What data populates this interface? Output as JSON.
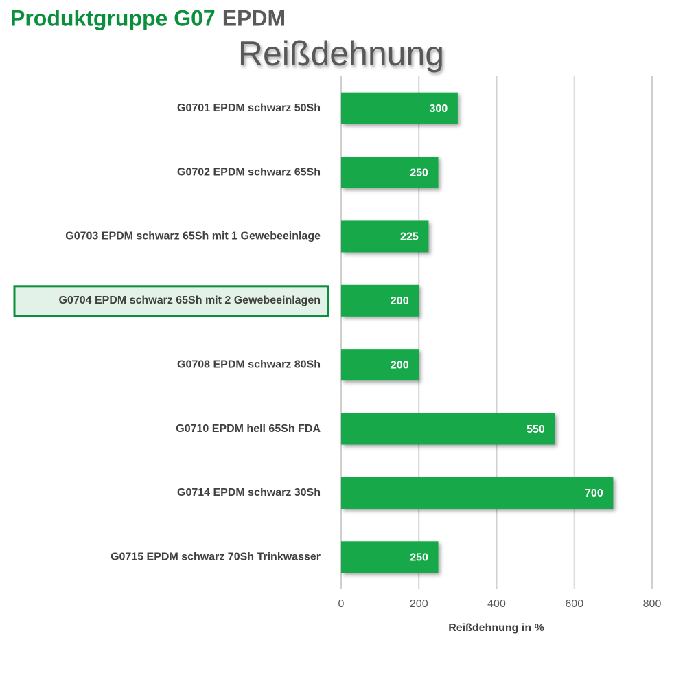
{
  "chart_data": {
    "type": "hbar",
    "title": "Produktgruppe G07",
    "title_suffix": "EPDM",
    "subtitle": "Reißdehnung",
    "x_label": "Reißdehnung in %",
    "categories": [
      "G0701 EPDM schwarz 50Sh",
      "G0702 EPDM schwarz 65Sh",
      "G0703 EPDM schwarz 65Sh mit 1 Gewebeeinlage",
      "G0704 EPDM schwarz 65Sh mit 2 Gewebeeinlagen",
      "G0708 EPDM schwarz 80Sh",
      "G0710 EPDM hell 65Sh FDA",
      "G0714 EPDM schwarz 30Sh",
      "G0715 EPDM schwarz 70Sh Trinkwasser"
    ],
    "values": [
      300,
      250,
      225,
      200,
      200,
      550,
      700,
      250
    ],
    "color": "#12a84a",
    "highlight": 3,
    "xlim": [
      0,
      800
    ],
    "xticks": [
      0,
      200,
      400,
      600,
      800
    ],
    "grid": true
  }
}
